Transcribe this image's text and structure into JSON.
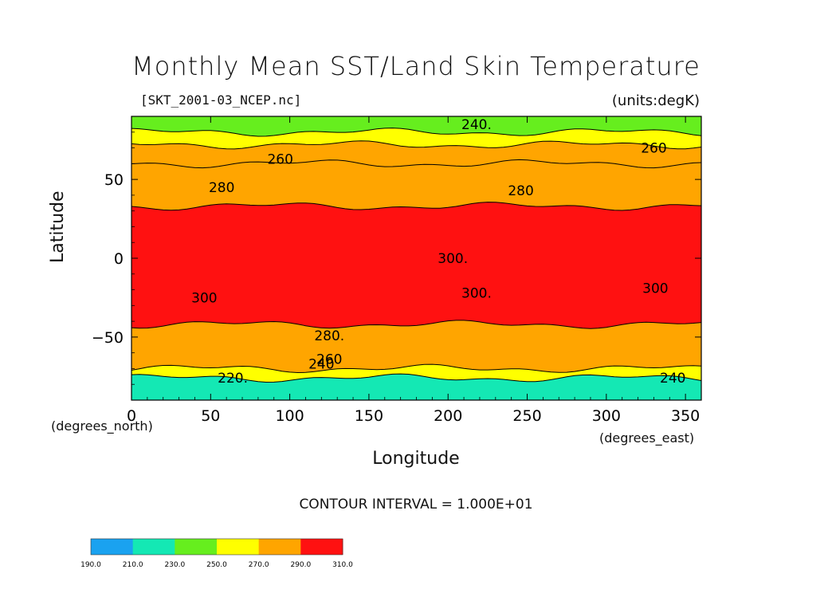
{
  "chart_data": {
    "type": "heatmap",
    "title": "Monthly Mean SST/Land Skin Temperature",
    "file_label": "[SKT_2001-03_NCEP.nc]",
    "units_label": "(units:degK)",
    "xlabel": "Longitude",
    "ylabel": "Latitude",
    "x_unit_label": "(degrees_east)",
    "y_unit_label": "(degrees_north)",
    "xlim": [
      0,
      360
    ],
    "ylim": [
      -90,
      90
    ],
    "x_ticks": [
      0,
      50,
      100,
      150,
      200,
      250,
      300,
      350
    ],
    "y_ticks": [
      -50,
      0,
      50
    ],
    "contour_interval_text": "CONTOUR INTERVAL = 1.000E+01",
    "colorbar": {
      "levels": [
        "190.0",
        "210.0",
        "230.0",
        "250.0",
        "270.0",
        "290.0",
        "310.0"
      ],
      "colors": [
        "#1aa2f0",
        "#14e8b4",
        "#66ee1e",
        "#ffff00",
        "#ffa500",
        "#ff1111"
      ]
    },
    "bands": [
      {
        "lat_from": 90,
        "lat_to": 80,
        "value": 240
      },
      {
        "lat_from": 80,
        "lat_to": 72,
        "value": 260
      },
      {
        "lat_from": 72,
        "lat_to": 60,
        "value": 270
      },
      {
        "lat_from": 60,
        "lat_to": 33,
        "value": 285
      },
      {
        "lat_from": 33,
        "lat_to": -42,
        "value": 300
      },
      {
        "lat_from": -42,
        "lat_to": -70,
        "value": 285
      },
      {
        "lat_from": -70,
        "lat_to": -76,
        "value": 265
      },
      {
        "lat_from": -76,
        "lat_to": -90,
        "value": 225
      }
    ],
    "contour_labels": [
      {
        "text": "240.",
        "lon": 218,
        "lat": 82
      },
      {
        "text": "260",
        "lon": 330,
        "lat": 67
      },
      {
        "text": "260",
        "lon": 94,
        "lat": 60
      },
      {
        "text": "280",
        "lon": 57,
        "lat": 42
      },
      {
        "text": "280",
        "lon": 246,
        "lat": 40
      },
      {
        "text": "300.",
        "lon": 203,
        "lat": -3
      },
      {
        "text": "300.",
        "lon": 218,
        "lat": -25
      },
      {
        "text": "300",
        "lon": 46,
        "lat": -28
      },
      {
        "text": "300",
        "lon": 331,
        "lat": -22
      },
      {
        "text": "280.",
        "lon": 125,
        "lat": -52
      },
      {
        "text": "260",
        "lon": 125,
        "lat": -67
      },
      {
        "text": "240",
        "lon": 120,
        "lat": -70
      },
      {
        "text": "220.",
        "lon": 64,
        "lat": -79
      },
      {
        "text": "240",
        "lon": 342,
        "lat": -79
      }
    ]
  }
}
